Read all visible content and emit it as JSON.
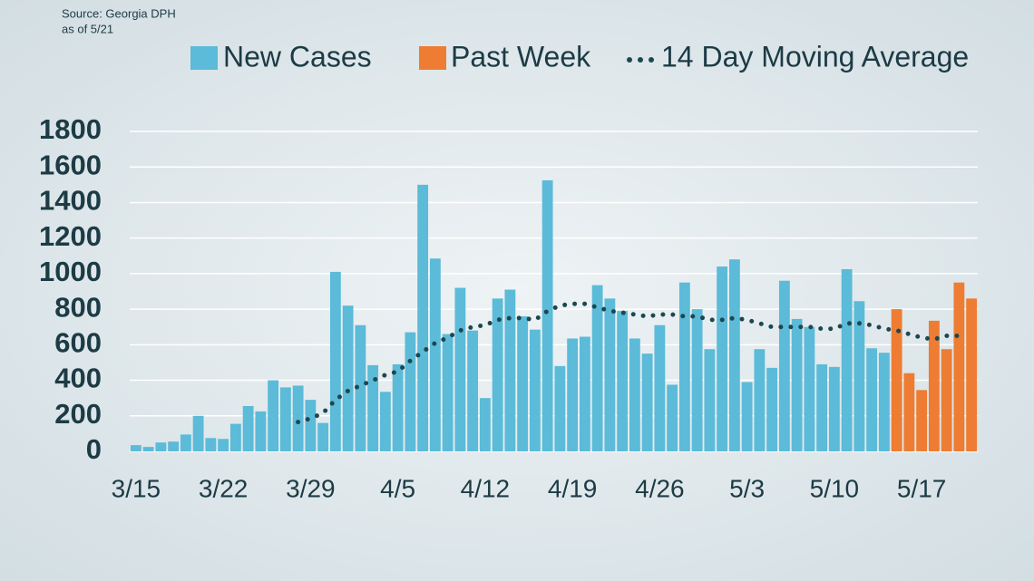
{
  "chart_data": {
    "type": "bar",
    "source": "Source: Georgia DPH",
    "as_of": "as of 5/21",
    "categories": [
      "3/15",
      null,
      null,
      null,
      null,
      null,
      null,
      "3/22",
      null,
      null,
      null,
      null,
      null,
      null,
      "3/29",
      null,
      null,
      null,
      null,
      null,
      null,
      "4/5",
      null,
      null,
      null,
      null,
      null,
      null,
      "4/12",
      null,
      null,
      null,
      null,
      null,
      null,
      "4/19",
      null,
      null,
      null,
      null,
      null,
      null,
      "4/26",
      null,
      null,
      null,
      null,
      null,
      null,
      "5/3",
      null,
      null,
      null,
      null,
      null,
      null,
      "5/10",
      null,
      null,
      null,
      null,
      null,
      null,
      "5/17",
      null,
      null,
      null,
      null
    ],
    "series": [
      {
        "name": "New Cases",
        "color": "#5bbbd8",
        "values": [
          35,
          25,
          50,
          55,
          95,
          200,
          75,
          70,
          155,
          255,
          225,
          400,
          360,
          370,
          290,
          160,
          1010,
          820,
          710,
          485,
          335,
          490,
          670,
          1500,
          1085,
          660,
          920,
          680,
          300,
          860,
          910,
          760,
          685,
          1525,
          480,
          635,
          645,
          935,
          860,
          790,
          635,
          550,
          710,
          375,
          950,
          800,
          575,
          1040,
          1080,
          390,
          575,
          470,
          960,
          745,
          700,
          490,
          475,
          1025,
          845,
          580,
          555,
          null,
          null,
          null,
          null,
          null,
          null,
          null
        ]
      },
      {
        "name": "Past Week",
        "color": "#ee7c32",
        "values": [
          null,
          null,
          null,
          null,
          null,
          null,
          null,
          null,
          null,
          null,
          null,
          null,
          null,
          null,
          null,
          null,
          null,
          null,
          null,
          null,
          null,
          null,
          null,
          null,
          null,
          null,
          null,
          null,
          null,
          null,
          null,
          null,
          null,
          null,
          null,
          null,
          null,
          null,
          null,
          null,
          null,
          null,
          null,
          null,
          null,
          null,
          null,
          null,
          null,
          null,
          null,
          null,
          null,
          null,
          null,
          null,
          null,
          null,
          null,
          null,
          null,
          800,
          440,
          345,
          735,
          575,
          950,
          860
        ]
      },
      {
        "name": "14 Day Moving Average",
        "type": "line",
        "color": "#1d4750",
        "values": [
          null,
          null,
          null,
          null,
          null,
          null,
          null,
          null,
          null,
          null,
          null,
          null,
          null,
          165,
          185,
          215,
          290,
          340,
          370,
          400,
          430,
          450,
          510,
          560,
          610,
          640,
          680,
          700,
          710,
          740,
          750,
          750,
          740,
          790,
          820,
          830,
          830,
          810,
          790,
          780,
          770,
          760,
          770,
          770,
          760,
          760,
          740,
          740,
          750,
          740,
          720,
          700,
          700,
          700,
          700,
          690,
          690,
          720,
          720,
          710,
          690,
          680,
          660,
          640,
          630,
          650,
          650,
          null
        ]
      }
    ],
    "ylim": [
      0,
      1800
    ],
    "yticks": [
      0,
      200,
      400,
      600,
      800,
      1000,
      1200,
      1400,
      1600,
      1800
    ],
    "grid": true
  }
}
